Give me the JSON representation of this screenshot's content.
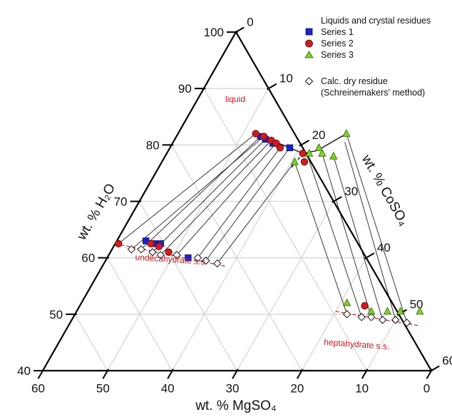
{
  "chart_data": {
    "type": "scatter",
    "subtype": "ternary",
    "axes": {
      "left": {
        "label": "wt. % H₂O",
        "ticks": [
          "40",
          "50",
          "60",
          "70",
          "80",
          "90",
          "100"
        ]
      },
      "right": {
        "label": "wt. % CoSO₄",
        "ticks": [
          "0",
          "10",
          "20",
          "30",
          "40",
          "50",
          "60"
        ]
      },
      "bottom": {
        "label": "wt. % MgSO₄",
        "ticks": [
          "60",
          "50",
          "40",
          "30",
          "20",
          "10",
          "0"
        ]
      }
    },
    "grid": true,
    "legend": {
      "position": "top-right",
      "heading": "Liquids and crystal residues",
      "entries": [
        {
          "label": "Series 1",
          "marker": "square",
          "color": "#1a23c9"
        },
        {
          "label": "Series 2",
          "marker": "circle",
          "color": "#d01c20"
        },
        {
          "label": "Series 3",
          "marker": "triangle",
          "color": "#7ed321"
        },
        {
          "label": "Calc. dry residue",
          "label2": "(Schreinemakers' method)",
          "marker": "diamond",
          "color": "#ffffff"
        }
      ]
    },
    "annotations": {
      "liquid": "liquid",
      "undecahydrate": "undecahydrate s.s.",
      "heptahydrate": "heptahydrate s.s."
    },
    "colors": {
      "series1": "#1a23c9",
      "series2": "#d01c20",
      "series3": "#7ed321",
      "boundary": "#d01c20"
    },
    "series": [
      {
        "name": "Series 1",
        "marker": "square",
        "points": [
          {
            "h2o": 81.5,
            "coso4": 13.0
          },
          {
            "h2o": 81.0,
            "coso4": 14.0
          },
          {
            "h2o": 80.3,
            "coso4": 15.5
          },
          {
            "h2o": 79.5,
            "coso4": 18.5
          },
          {
            "h2o": 63.0,
            "coso4": 4.5
          },
          {
            "h2o": 62.5,
            "coso4": 6.0
          },
          {
            "h2o": 62.5,
            "coso4": 7.0
          },
          {
            "h2o": 60.0,
            "coso4": 12.5
          }
        ]
      },
      {
        "name": "Series 2",
        "marker": "circle",
        "points": [
          {
            "h2o": 82.0,
            "coso4": 12.0
          },
          {
            "h2o": 81.5,
            "coso4": 13.5
          },
          {
            "h2o": 80.8,
            "coso4": 15.0
          },
          {
            "h2o": 80.3,
            "coso4": 16.0
          },
          {
            "h2o": 79.5,
            "coso4": 17.0
          },
          {
            "h2o": 78.5,
            "coso4": 21.0
          },
          {
            "h2o": 77.0,
            "coso4": 22.0
          },
          {
            "h2o": 62.5,
            "coso4": 0.5
          },
          {
            "h2o": 62.5,
            "coso4": 5.5
          },
          {
            "h2o": 62.0,
            "coso4": 7.0
          },
          {
            "h2o": 61.0,
            "coso4": 9.0
          },
          {
            "h2o": 51.5,
            "coso4": 44.0
          }
        ]
      },
      {
        "name": "Series 3",
        "marker": "triangle",
        "points": [
          {
            "h2o": 79.5,
            "coso4": 23.0
          },
          {
            "h2o": 78.5,
            "coso4": 22.0
          },
          {
            "h2o": 78.5,
            "coso4": 24.0
          },
          {
            "h2o": 78.0,
            "coso4": 26.0
          },
          {
            "h2o": 77.0,
            "coso4": 20.5
          },
          {
            "h2o": 82.0,
            "coso4": 26.0
          },
          {
            "h2o": 52.0,
            "coso4": 41.0
          },
          {
            "h2o": 50.5,
            "coso4": 45.5
          },
          {
            "h2o": 50.5,
            "coso4": 48.0
          },
          {
            "h2o": 50.5,
            "coso4": 50.0
          },
          {
            "h2o": 50.5,
            "coso4": 53.0
          }
        ]
      },
      {
        "name": "Calc. dry residue",
        "marker": "diamond",
        "points": [
          {
            "h2o": 61.5,
            "coso4": 3.0
          },
          {
            "h2o": 61.5,
            "coso4": 4.5
          },
          {
            "h2o": 61.0,
            "coso4": 6.5
          },
          {
            "h2o": 60.5,
            "coso4": 8.0
          },
          {
            "h2o": 60.5,
            "coso4": 10.5
          },
          {
            "h2o": 60.0,
            "coso4": 14.0
          },
          {
            "h2o": 59.5,
            "coso4": 15.5
          },
          {
            "h2o": 59.0,
            "coso4": 17.5
          },
          {
            "h2o": 50.0,
            "coso4": 42.0
          },
          {
            "h2o": 49.5,
            "coso4": 44.5
          },
          {
            "h2o": 49.5,
            "coso4": 46.0
          },
          {
            "h2o": 49.0,
            "coso4": 48.0
          },
          {
            "h2o": 49.0,
            "coso4": 50.0
          },
          {
            "h2o": 48.5,
            "coso4": 52.0
          }
        ]
      }
    ],
    "tie_lines": [
      [
        {
          "h2o": 82.0,
          "coso4": 12.0
        },
        {
          "h2o": 62.5,
          "coso4": 0.5
        }
      ],
      [
        {
          "h2o": 81.5,
          "coso4": 13.5
        },
        {
          "h2o": 61.5,
          "coso4": 3.0
        }
      ],
      [
        {
          "h2o": 81.5,
          "coso4": 13.0
        },
        {
          "h2o": 61.5,
          "coso4": 4.5
        }
      ],
      [
        {
          "h2o": 81.0,
          "coso4": 14.0
        },
        {
          "h2o": 61.0,
          "coso4": 6.5
        }
      ],
      [
        {
          "h2o": 80.8,
          "coso4": 15.0
        },
        {
          "h2o": 60.5,
          "coso4": 8.0
        }
      ],
      [
        {
          "h2o": 80.3,
          "coso4": 16.0
        },
        {
          "h2o": 60.5,
          "coso4": 10.5
        }
      ],
      [
        {
          "h2o": 79.5,
          "coso4": 17.0
        },
        {
          "h2o": 60.0,
          "coso4": 14.0
        }
      ],
      [
        {
          "h2o": 79.5,
          "coso4": 18.5
        },
        {
          "h2o": 59.5,
          "coso4": 15.5
        }
      ],
      [
        {
          "h2o": 77.0,
          "coso4": 20.5
        },
        {
          "h2o": 59.0,
          "coso4": 17.5
        }
      ],
      [
        {
          "h2o": 77.0,
          "coso4": 20.5
        },
        {
          "h2o": 50.0,
          "coso4": 42.0
        }
      ],
      [
        {
          "h2o": 78.0,
          "coso4": 22.0
        },
        {
          "h2o": 49.5,
          "coso4": 44.5
        }
      ],
      [
        {
          "h2o": 78.5,
          "coso4": 24.0
        },
        {
          "h2o": 49.5,
          "coso4": 46.0
        }
      ],
      [
        {
          "h2o": 78.0,
          "coso4": 26.0
        },
        {
          "h2o": 49.0,
          "coso4": 48.0
        }
      ],
      [
        {
          "h2o": 80.5,
          "coso4": 26.5
        },
        {
          "h2o": 49.0,
          "coso4": 50.0
        }
      ],
      [
        {
          "h2o": 82.0,
          "coso4": 26.0
        },
        {
          "h2o": 48.5,
          "coso4": 52.0
        }
      ]
    ],
    "liquidus": [
      {
        "h2o": 82.0,
        "coso4": 12.0
      },
      {
        "h2o": 80.8,
        "coso4": 15.0
      },
      {
        "h2o": 79.5,
        "coso4": 18.5
      },
      {
        "h2o": 78.5,
        "coso4": 21.0
      },
      {
        "h2o": 79.0,
        "coso4": 23.0
      },
      {
        "h2o": 82.0,
        "coso4": 26.0
      }
    ],
    "liquidus_branch": [
      {
        "h2o": 78.5,
        "coso4": 21.0
      },
      {
        "h2o": 76.0,
        "coso4": 20.5
      }
    ],
    "boundaries": [
      [
        {
          "h2o": 62.5,
          "coso4": 0.0
        },
        {
          "h2o": 58.5,
          "coso4": 19.0
        }
      ],
      [
        {
          "h2o": 50.5,
          "coso4": 40.0
        },
        {
          "h2o": 48.0,
          "coso4": 54.0
        }
      ]
    ]
  }
}
